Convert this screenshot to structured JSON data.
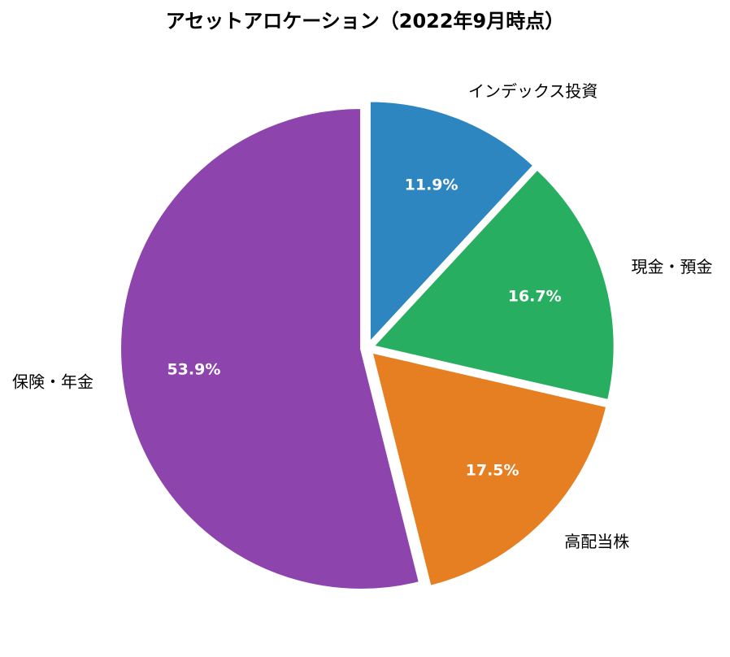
{
  "chart_data": {
    "type": "pie",
    "title": "アセットアロケーション（2022年9月時点）",
    "slices": [
      {
        "label": "インデックス投資",
        "value": 11.9,
        "pct_label": "11.9%",
        "color": "#2e86c1"
      },
      {
        "label": "現金・預金",
        "value": 16.7,
        "pct_label": "16.7%",
        "color": "#27ae60"
      },
      {
        "label": "高配当株",
        "value": 17.5,
        "pct_label": "17.5%",
        "color": "#e67e22"
      },
      {
        "label": "保険・年金",
        "value": 53.9,
        "pct_label": "53.9%",
        "color": "#8e44ad"
      }
    ],
    "start_angle": "top",
    "direction": "clockwise",
    "exploded": true,
    "legend": "none"
  }
}
